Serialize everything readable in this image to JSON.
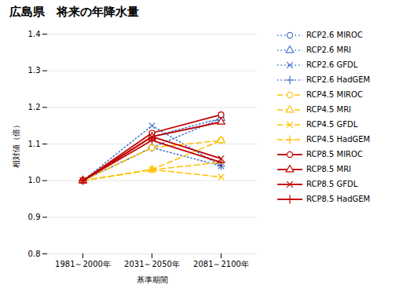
{
  "chart_data": {
    "type": "line",
    "title": "広島県　将来の年降水量",
    "xlabel": "基準期間",
    "ylabel": "相対値（倍）",
    "categories": [
      "1981～2000年",
      "2031～2050年",
      "2081～2100年"
    ],
    "ylim": [
      0.8,
      1.4
    ],
    "yticks": [
      0.8,
      0.9,
      {
        "value": 1,
        "label": "1.0"
      },
      1.1,
      1.2,
      1.3,
      1.4
    ],
    "grid": true,
    "legend": "right",
    "series": [
      {
        "name": "RCP2.6 MIROC",
        "color": "#4472C4",
        "line_style": "dotted",
        "marker": "circle",
        "values": [
          1.0,
          1.09,
          1.17
        ]
      },
      {
        "name": "RCP2.6 MRI",
        "color": "#4472C4",
        "line_style": "dotted",
        "marker": "triangle",
        "values": [
          1.0,
          1.12,
          1.17
        ]
      },
      {
        "name": "RCP2.6 GFDL",
        "color": "#4472C4",
        "line_style": "dotted",
        "marker": "times",
        "values": [
          1.0,
          1.15,
          1.04
        ]
      },
      {
        "name": "RCP2.6 HadGEM",
        "color": "#4472C4",
        "line_style": "dotted",
        "marker": "plus",
        "values": [
          1.0,
          1.09,
          1.04
        ]
      },
      {
        "name": "RCP4.5 MIROC",
        "color": "#FFC000",
        "line_style": "dashed",
        "marker": "circle",
        "values": [
          1.0,
          1.09,
          1.11
        ]
      },
      {
        "name": "RCP4.5 MRI",
        "color": "#FFC000",
        "line_style": "dashed",
        "marker": "triangle",
        "values": [
          1.0,
          1.03,
          1.11
        ]
      },
      {
        "name": "RCP4.5 GFDL",
        "color": "#FFC000",
        "line_style": "dashed",
        "marker": "times",
        "values": [
          1.0,
          1.03,
          1.01
        ]
      },
      {
        "name": "RCP4.5 HadGEM",
        "color": "#FFC000",
        "line_style": "dashed",
        "marker": "plus",
        "values": [
          1.0,
          1.03,
          1.05
        ]
      },
      {
        "name": "RCP8.5 MIROC",
        "color": "#C00000",
        "line_style": "solid",
        "marker": "circle",
        "values": [
          1.0,
          1.13,
          1.18
        ]
      },
      {
        "name": "RCP8.5 MRI",
        "color": "#C00000",
        "line_style": "solid",
        "marker": "triangle",
        "values": [
          1.0,
          1.12,
          1.16
        ]
      },
      {
        "name": "RCP8.5 GFDL",
        "color": "#C00000",
        "line_style": "solid",
        "marker": "times",
        "values": [
          1.0,
          1.12,
          1.06
        ]
      },
      {
        "name": "RCP8.5 HadGEM",
        "color": "#C00000",
        "line_style": "solid",
        "marker": "plus",
        "values": [
          1.0,
          1.11,
          1.05
        ]
      }
    ]
  }
}
